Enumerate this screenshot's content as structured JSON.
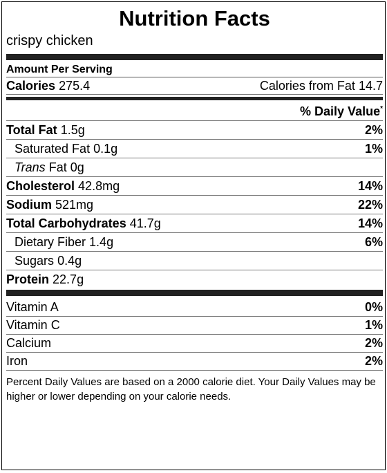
{
  "title": "Nutrition Facts",
  "food_name": "crispy chicken",
  "amount_per_serving": "Amount Per Serving",
  "calories": {
    "label": "Calories",
    "value": "275.4",
    "from_fat_label": "Calories from Fat",
    "from_fat_value": "14.7"
  },
  "daily_value_header": "% Daily Value",
  "daily_value_marker": "*",
  "nutrients": {
    "total_fat": {
      "label": "Total Fat",
      "amount": "1.5g",
      "dv": "2%"
    },
    "saturated_fat": {
      "label": "Saturated Fat",
      "amount": "0.1g",
      "dv": "1%"
    },
    "trans_fat": {
      "label_italic": "Trans",
      "label_rest": "Fat",
      "amount": "0g"
    },
    "cholesterol": {
      "label": "Cholesterol",
      "amount": "42.8mg",
      "dv": "14%"
    },
    "sodium": {
      "label": "Sodium",
      "amount": "521mg",
      "dv": "22%"
    },
    "total_carbs": {
      "label": "Total Carbohydrates",
      "amount": "41.7g",
      "dv": "14%"
    },
    "dietary_fiber": {
      "label": "Dietary Fiber",
      "amount": "1.4g",
      "dv": "6%"
    },
    "sugars": {
      "label": "Sugars",
      "amount": "0.4g"
    },
    "protein": {
      "label": "Protein",
      "amount": "22.7g"
    }
  },
  "vitamins": [
    {
      "label": "Vitamin A",
      "dv": "0%"
    },
    {
      "label": "Vitamin C",
      "dv": "1%"
    },
    {
      "label": "Calcium",
      "dv": "2%"
    },
    {
      "label": "Iron",
      "dv": "2%"
    }
  ],
  "footnote": "Percent Daily Values are based on a 2000 calorie diet. Your Daily Values may be higher or lower depending on your calorie needs."
}
